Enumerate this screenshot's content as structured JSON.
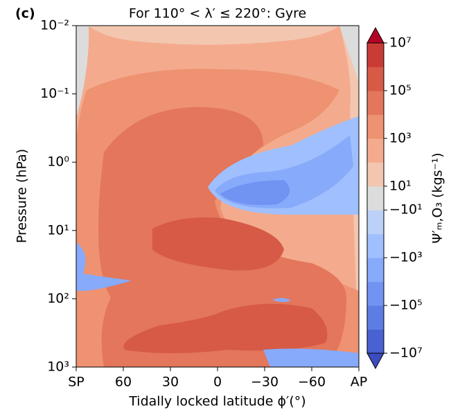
{
  "panel_label": "(c)",
  "chart_data": {
    "type": "contour",
    "title": "For 110° < λ′ ≤ 220°: Gyre",
    "x_label": "Tidally locked latitude ϕ′(°)",
    "y_label": "Pressure (hPa)",
    "xlim": [
      90,
      -90
    ],
    "xticks": [
      {
        "value": 90,
        "label": "SP"
      },
      60,
      30,
      0,
      {
        "value": -30,
        "label": "−30"
      },
      {
        "value": -60,
        "label": "−60"
      },
      {
        "value": -90,
        "label": "AP"
      }
    ],
    "ylim": [
      0.01,
      1000
    ],
    "y_log": true,
    "y_inverted": true,
    "yticks": [
      {
        "value": 0.01,
        "label": "10⁻²"
      },
      {
        "value": 0.1,
        "label": "10⁻¹"
      },
      {
        "value": 1,
        "label": "10⁰"
      },
      {
        "value": 10,
        "label": "10¹"
      },
      {
        "value": 100,
        "label": "10²"
      },
      {
        "value": 1000,
        "label": "10³"
      }
    ],
    "colorbar": {
      "label": "Ψ′ₘ,O₃ (kgs⁻¹)",
      "levels": [
        -10000000,
        -1000000,
        -100000,
        -10000,
        -1000,
        -100,
        -10,
        10,
        100,
        1000,
        10000,
        100000,
        1000000,
        10000000
      ],
      "colors": [
        "#4a61d1",
        "#5d7ce4",
        "#7193f2",
        "#87aafb",
        "#a0bffe",
        "#bcd1f7",
        "#dcdcdc",
        "#f3c6b0",
        "#f4ab8d",
        "#ee9272",
        "#e3765b",
        "#d75a46",
        "#c93c35"
      ],
      "under_color": "#3b4cc0",
      "over_color": "#b40426",
      "ticks": [
        {
          "value": 10000000,
          "label": "10⁷"
        },
        {
          "value": 100000,
          "label": "10⁵"
        },
        {
          "value": 1000,
          "label": "10³"
        },
        {
          "value": 10,
          "label": "10¹"
        },
        {
          "value": -10,
          "label": "−10¹"
        },
        {
          "value": -1000,
          "label": "−10³"
        },
        {
          "value": -100000,
          "label": "−10⁵"
        },
        {
          "value": -10000000,
          "label": "−10⁷"
        }
      ]
    }
  }
}
